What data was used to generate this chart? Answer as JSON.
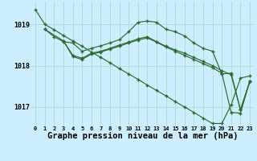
{
  "background_color": "#cceeff",
  "grid_color": "#aaddcc",
  "line_color": "#2d6b2d",
  "xlabel": "Graphe pression niveau de la mer (hPa)",
  "xlabel_fontsize": 7.5,
  "xticks": [
    0,
    1,
    2,
    3,
    4,
    5,
    6,
    7,
    8,
    9,
    10,
    11,
    12,
    13,
    14,
    15,
    16,
    17,
    18,
    19,
    20,
    21,
    22,
    23
  ],
  "yticks": [
    1017,
    1018,
    1019
  ],
  "ylim": [
    1016.55,
    1019.55
  ],
  "xlim": [
    -0.5,
    23.5
  ],
  "series": [
    {
      "x": [
        0,
        1,
        2,
        3,
        4,
        5,
        6,
        7,
        8,
        9,
        10,
        11,
        12,
        13,
        14,
        15,
        16,
        17,
        18,
        19,
        20,
        21,
        22,
        23
      ],
      "y": [
        1019.35,
        1019.0,
        1018.87,
        1018.73,
        1018.6,
        1018.47,
        1018.33,
        1018.2,
        1018.07,
        1017.93,
        1017.8,
        1017.67,
        1017.53,
        1017.4,
        1017.27,
        1017.13,
        1017.0,
        1016.87,
        1016.73,
        1016.6,
        1016.6,
        1017.05,
        1017.7,
        1017.75
      ]
    },
    {
      "x": [
        1,
        2,
        3,
        4,
        5,
        6,
        7,
        8,
        9,
        10,
        11,
        12,
        13,
        14,
        15,
        16,
        17,
        18,
        19,
        20,
        21,
        22,
        23
      ],
      "y": [
        1018.88,
        1018.7,
        1018.58,
        1018.55,
        1018.35,
        1018.42,
        1018.48,
        1018.55,
        1018.63,
        1018.82,
        1019.05,
        1019.08,
        1019.05,
        1018.88,
        1018.82,
        1018.72,
        1018.55,
        1018.42,
        1018.35,
        1017.8,
        1017.82,
        1016.93,
        1017.62
      ]
    },
    {
      "x": [
        1,
        3,
        4,
        5,
        6,
        7,
        8,
        9,
        10,
        11,
        12,
        13,
        14,
        15,
        16,
        17,
        18,
        19,
        20,
        21,
        22,
        23
      ],
      "y": [
        1018.88,
        1018.6,
        1018.25,
        1018.18,
        1018.3,
        1018.35,
        1018.42,
        1018.5,
        1018.57,
        1018.65,
        1018.7,
        1018.58,
        1018.47,
        1018.38,
        1018.3,
        1018.2,
        1018.1,
        1018.0,
        1017.88,
        1017.78,
        1016.93,
        1017.62
      ]
    },
    {
      "x": [
        3,
        4,
        5,
        6,
        7,
        8,
        9,
        10,
        11,
        12,
        13,
        14,
        15,
        16,
        17,
        18,
        19,
        20,
        21,
        22,
        23
      ],
      "y": [
        1018.6,
        1018.22,
        1018.15,
        1018.28,
        1018.33,
        1018.4,
        1018.47,
        1018.55,
        1018.62,
        1018.67,
        1018.57,
        1018.45,
        1018.35,
        1018.25,
        1018.15,
        1018.05,
        1017.95,
        1017.82,
        1016.87,
        1016.85,
        1017.62
      ]
    }
  ]
}
